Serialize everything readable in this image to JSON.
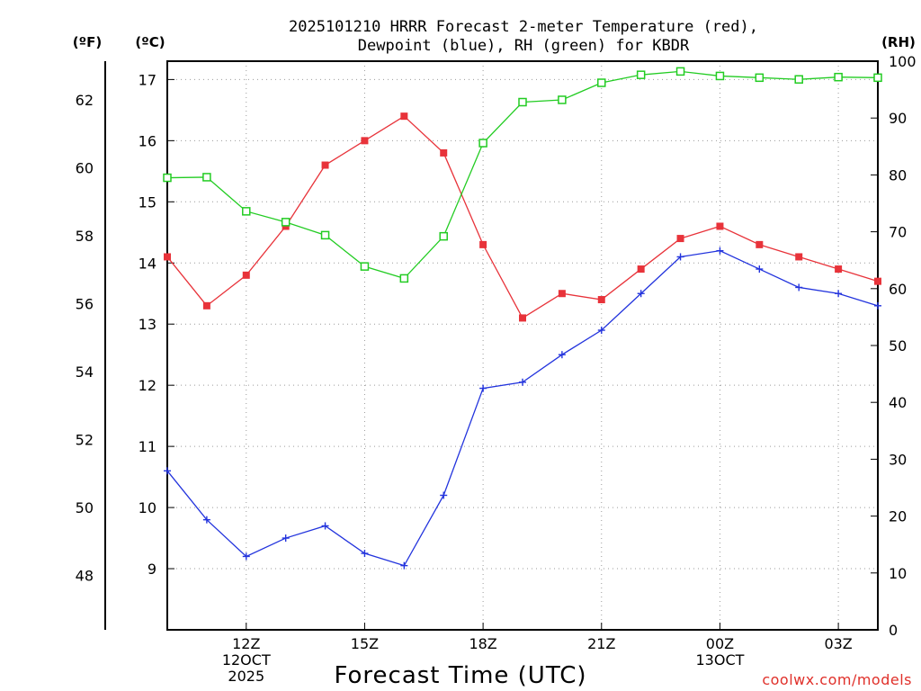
{
  "chart_data": {
    "type": "line",
    "title_line1": "2025101210 HRRR Forecast 2-meter Temperature (red),",
    "title_line2": "Dewpoint (blue), RH (green) for KBDR",
    "unit_f": "(ºF)",
    "unit_c": "(ºC)",
    "unit_rh": "(RH)",
    "xlabel": "Forecast Time (UTC)",
    "credit": "coolwx.com/models",
    "x_hours": [
      0,
      1,
      2,
      3,
      4,
      5,
      6,
      7,
      8,
      9,
      10,
      11,
      12,
      13,
      14,
      15,
      16,
      17,
      18
    ],
    "x_ticks": [
      {
        "hour": 2,
        "lines": [
          "12Z",
          "12OCT",
          "2025"
        ]
      },
      {
        "hour": 5,
        "lines": [
          "15Z"
        ]
      },
      {
        "hour": 8,
        "lines": [
          "18Z"
        ]
      },
      {
        "hour": 11,
        "lines": [
          "21Z"
        ]
      },
      {
        "hour": 14,
        "lines": [
          "00Z",
          "13OCT"
        ]
      },
      {
        "hour": 17,
        "lines": [
          "03Z"
        ]
      }
    ],
    "xlim": [
      0,
      18
    ],
    "c_axis": {
      "ylim": [
        8.0,
        17.3
      ],
      "ticks": [
        9,
        10,
        11,
        12,
        13,
        14,
        15,
        16,
        17
      ]
    },
    "f_axis": {
      "ticks": [
        48,
        50,
        52,
        54,
        56,
        58,
        60,
        62
      ]
    },
    "rh_axis": {
      "ylim": [
        0,
        100
      ],
      "ticks": [
        0,
        10,
        20,
        30,
        40,
        50,
        60,
        70,
        80,
        90,
        100
      ]
    },
    "series": [
      {
        "name": "Temperature",
        "unit": "C",
        "color": "#e8333a",
        "marker": "filled-square",
        "values": [
          14.1,
          13.3,
          13.8,
          14.6,
          15.6,
          16.0,
          16.4,
          15.8,
          14.3,
          13.1,
          13.5,
          13.4,
          13.9,
          14.4,
          14.6,
          14.3,
          14.1,
          13.9,
          13.7
        ]
      },
      {
        "name": "Dewpoint",
        "unit": "C",
        "color": "#2233dd",
        "marker": "plus",
        "values": [
          10.6,
          9.8,
          9.2,
          9.5,
          9.7,
          9.25,
          9.05,
          10.2,
          11.95,
          12.05,
          12.5,
          12.9,
          13.5,
          14.1,
          14.2,
          13.9,
          13.6,
          13.5,
          13.3
        ]
      },
      {
        "name": "RH",
        "unit": "%",
        "color": "#22cc22",
        "marker": "open-square",
        "values": [
          79.5,
          79.6,
          73.6,
          71.7,
          69.4,
          63.9,
          61.8,
          69.2,
          85.6,
          92.8,
          93.2,
          96.2,
          97.6,
          98.2,
          97.4,
          97.1,
          96.8,
          97.2,
          97.1
        ]
      }
    ]
  }
}
